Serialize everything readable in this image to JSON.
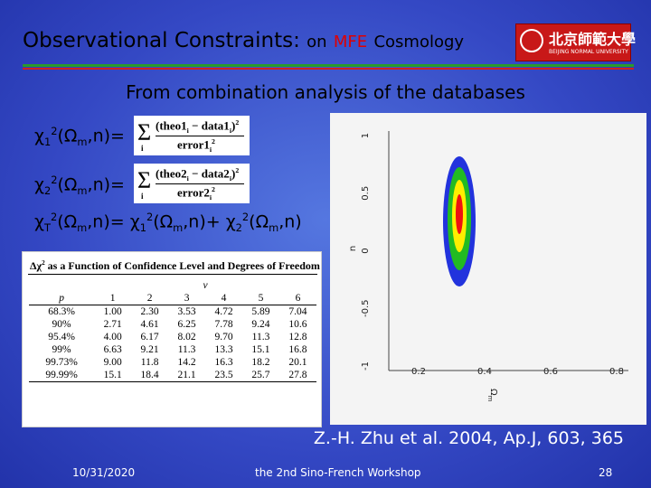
{
  "header": {
    "title": "Observational Constraints:",
    "title_on": "on",
    "title_mfe": "MFE",
    "title_cosmology": "Cosmology",
    "logo": {
      "chinese": "北京師範大學",
      "english": "BEIJING NORMAL UNIVERSITY"
    }
  },
  "subtitle": "From combination analysis of the databases",
  "equations": [
    {
      "lhs": [
        "χ",
        "1",
        "2",
        "(Ω",
        "m",
        ",n)="
      ],
      "formula": {
        "sum_index": "i",
        "numerator": [
          "(theo1",
          "i",
          " − data1",
          "i",
          ")",
          "2"
        ],
        "denominator": [
          "error1",
          "i",
          "2"
        ]
      }
    },
    {
      "lhs": [
        "χ",
        "2",
        "2",
        "(Ω",
        "m",
        ",n)="
      ],
      "formula": {
        "sum_index": "i",
        "numerator": [
          "(theo2",
          "i",
          " − data2",
          "i",
          ")",
          "2"
        ],
        "denominator": [
          "error2",
          "i",
          "2"
        ]
      }
    },
    {
      "lhs": [
        "χ",
        "T",
        "2",
        "(Ω",
        "m",
        ",n)= χ",
        "1",
        "2",
        "(Ω",
        "m",
        ",n)+ χ",
        "2",
        "2",
        "(Ω",
        "m",
        ",n)"
      ]
    }
  ],
  "table": {
    "title": [
      "Δχ",
      "2",
      " as a Function of Confidence Level and Degrees of Freedom"
    ],
    "group_header": "ν",
    "columns": [
      "p",
      "1",
      "2",
      "3",
      "4",
      "5",
      "6"
    ],
    "rows": [
      [
        "68.3%",
        "1.00",
        "2.30",
        "3.53",
        "4.72",
        "5.89",
        "7.04"
      ],
      [
        "90%",
        "2.71",
        "4.61",
        "6.25",
        "7.78",
        "9.24",
        "10.6"
      ],
      [
        "95.4%",
        "4.00",
        "6.17",
        "8.02",
        "9.70",
        "11.3",
        "12.8"
      ],
      [
        "99%",
        "6.63",
        "9.21",
        "11.3",
        "13.3",
        "15.1",
        "16.8"
      ],
      [
        "99.73%",
        "9.00",
        "11.8",
        "14.2",
        "16.3",
        "18.2",
        "20.1"
      ],
      [
        "99.99%",
        "15.1",
        "18.4",
        "21.1",
        "23.5",
        "25.7",
        "27.8"
      ]
    ]
  },
  "plot": {
    "y_label": "n",
    "y_ticks": [
      "1",
      "0.5",
      "0",
      "-0.5",
      "-1"
    ],
    "x_label": [
      "Ω",
      "m"
    ],
    "x_ticks": [
      "0.2",
      "0.4",
      "0.6",
      "0.8"
    ]
  },
  "citation": "Z.-H. Zhu et al. 2004, Ap.J, 603, 365",
  "footer": {
    "date": "10/31/2020",
    "event": "the 2nd Sino-French Workshop",
    "page": "28"
  }
}
